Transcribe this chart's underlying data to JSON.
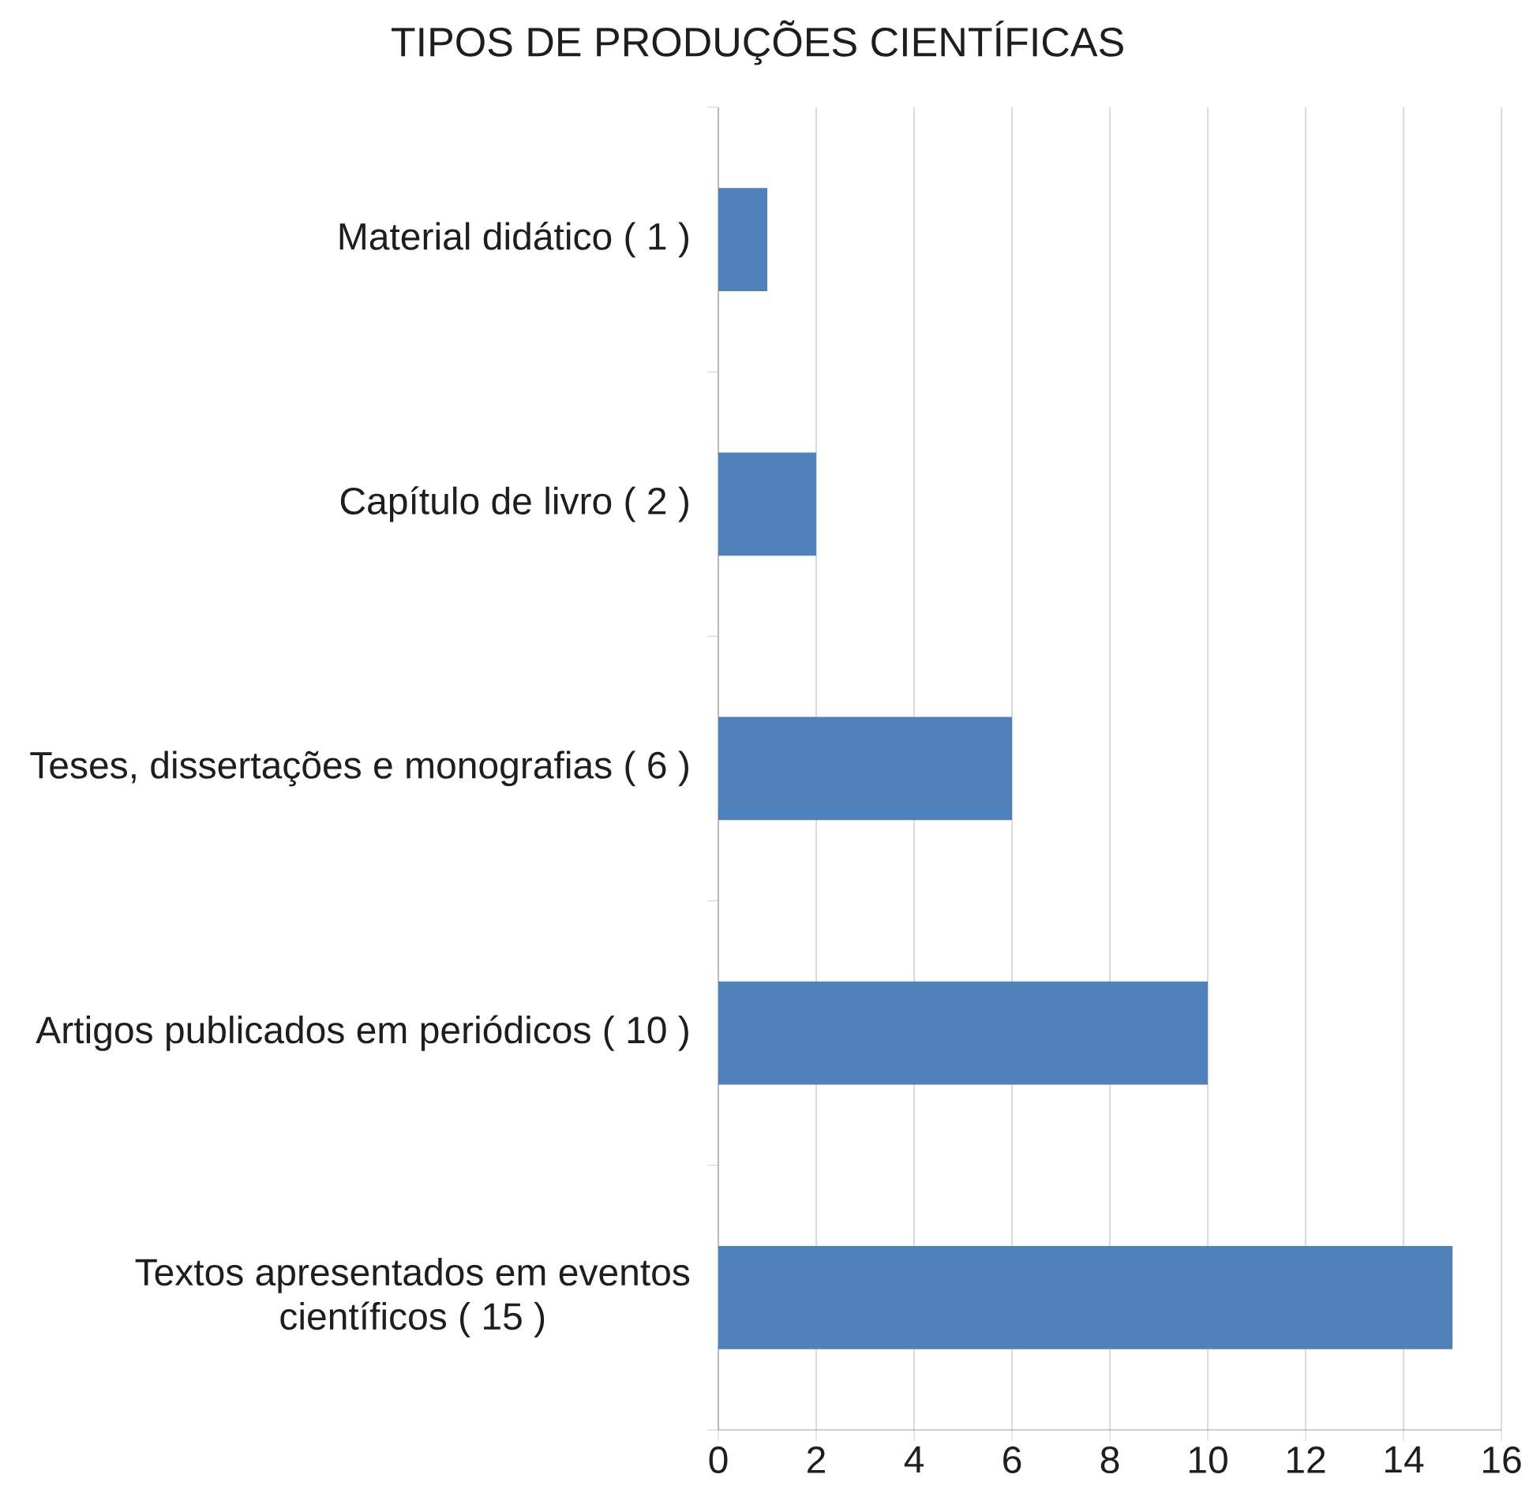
{
  "chart_data": {
    "type": "bar",
    "title": "TIPOS DE PRODUÇÕES CIENTÍFICAS",
    "orientation": "horizontal",
    "categories": [
      "Material didático ( 1 )",
      "Capítulo de livro ( 2 )",
      "Teses, dissertações e monografias ( 6 )",
      "Artigos publicados em periódicos ( 10 )",
      "Textos apresentados em eventos científicos ( 15 )"
    ],
    "values": [
      1,
      2,
      6,
      10,
      15
    ],
    "color": "#4f81bd",
    "xlim": [
      0,
      16
    ],
    "xticks": [
      0,
      2,
      4,
      6,
      8,
      10,
      12,
      14,
      16
    ],
    "grid": "x"
  }
}
